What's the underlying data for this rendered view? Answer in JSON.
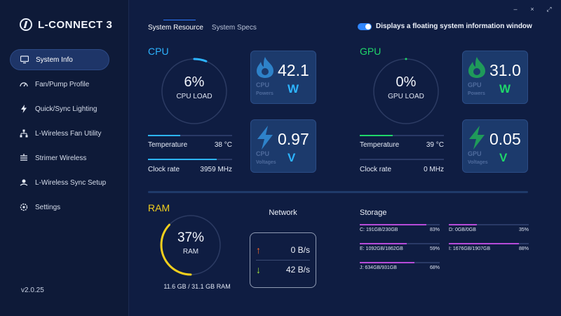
{
  "app": {
    "name": "L-CONNECT 3",
    "version": "v2.0.25"
  },
  "window_controls": {
    "minimize": "–",
    "close": "×",
    "expand": "⤢"
  },
  "sidebar": {
    "items": [
      {
        "label": "System Info",
        "icon": "monitor-icon",
        "active": true
      },
      {
        "label": "Fan/Pump Profile",
        "icon": "gauge-icon",
        "active": false
      },
      {
        "label": "Quick/Sync Lighting",
        "icon": "bolt-icon",
        "active": false
      },
      {
        "label": "L-Wireless Fan Utility",
        "icon": "network-icon",
        "active": false
      },
      {
        "label": "Strimer Wireless",
        "icon": "strimer-icon",
        "active": false
      },
      {
        "label": "L-Wireless Sync Setup",
        "icon": "sync-icon",
        "active": false
      },
      {
        "label": "Settings",
        "icon": "gear-icon",
        "active": false
      }
    ]
  },
  "tabs": [
    {
      "label": "System Resource",
      "active": true
    },
    {
      "label": "System Specs",
      "active": false
    }
  ],
  "floating_window": {
    "label": "Displays a floating system information window",
    "enabled": true
  },
  "cpu": {
    "title": "CPU",
    "load": "6%",
    "load_fraction": 0.06,
    "load_label": "CPU LOAD",
    "temperature_label": "Temperature",
    "temperature": "38 °C",
    "temperature_fraction": 0.38,
    "clock_label": "Clock rate",
    "clock": "3959 MHz",
    "clock_fraction": 0.82,
    "power": {
      "value": "42.1",
      "unit": "W",
      "name": "CPU",
      "sub": "Powers"
    },
    "voltage": {
      "value": "0.97",
      "unit": "V",
      "name": "CPU",
      "sub": "Voltages"
    }
  },
  "gpu": {
    "title": "GPU",
    "load": "0%",
    "load_fraction": 0.0,
    "load_label": "GPU LOAD",
    "temperature_label": "Temperature",
    "temperature": "39 °C",
    "temperature_fraction": 0.39,
    "clock_label": "Clock rate",
    "clock": "0 MHz",
    "clock_fraction": 0.0,
    "power": {
      "value": "31.0",
      "unit": "W",
      "name": "GPU",
      "sub": "Powers"
    },
    "voltage": {
      "value": "0.05",
      "unit": "V",
      "name": "GPU",
      "sub": "Voltages"
    }
  },
  "ram": {
    "title": "RAM",
    "percent": "37%",
    "percent_fraction": 0.37,
    "label": "RAM",
    "usage": "11.6 GB / 31.1 GB RAM"
  },
  "network": {
    "title": "Network",
    "upload": "0 B/s",
    "download": "42 B/s"
  },
  "storage": {
    "title": "Storage",
    "drives": [
      {
        "label": "C: 191GB/230GB",
        "percent": "83%",
        "fraction": 0.83
      },
      {
        "label": "D: 0GB/0GB",
        "percent": "35%",
        "fraction": 0.35
      },
      {
        "label": "E: 1092GB/1862GB",
        "percent": "59%",
        "fraction": 0.59
      },
      {
        "label": "I: 1676GB/1907GB",
        "percent": "88%",
        "fraction": 0.88
      },
      {
        "label": "J: 634GB/931GB",
        "percent": "68%",
        "fraction": 0.68
      }
    ]
  },
  "colors": {
    "cpu_accent": "#2db4ff",
    "gpu_accent": "#1fd66a",
    "ram_accent": "#f2cf1d",
    "storage_accent": "#b64bd8",
    "upload_arrow": "#ff6a2a",
    "download_arrow": "#9fe33a"
  }
}
